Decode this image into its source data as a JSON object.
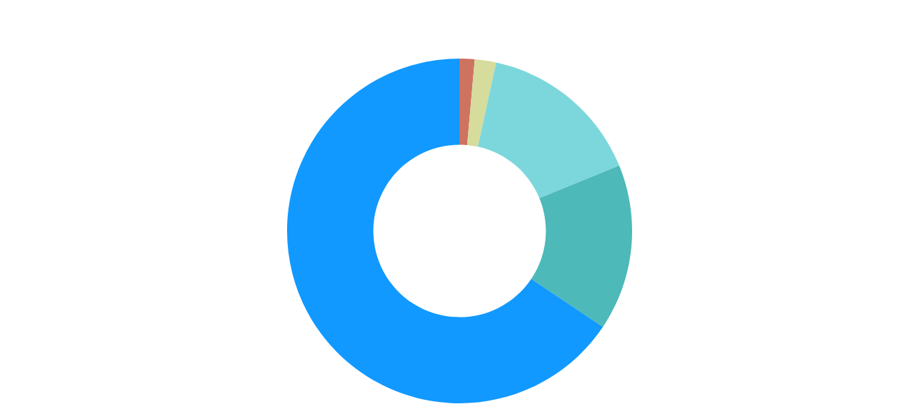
{
  "chart_data": {
    "type": "donut",
    "categories": [
      null,
      null,
      null,
      null,
      null
    ],
    "values": [
      1.4,
      2.0,
      15.4,
      15.6,
      65.6
    ],
    "colors": [
      "#cf7361",
      "#d5dc9c",
      "#7cd7dc",
      "#4db9b9",
      "#1199ff"
    ]
  }
}
